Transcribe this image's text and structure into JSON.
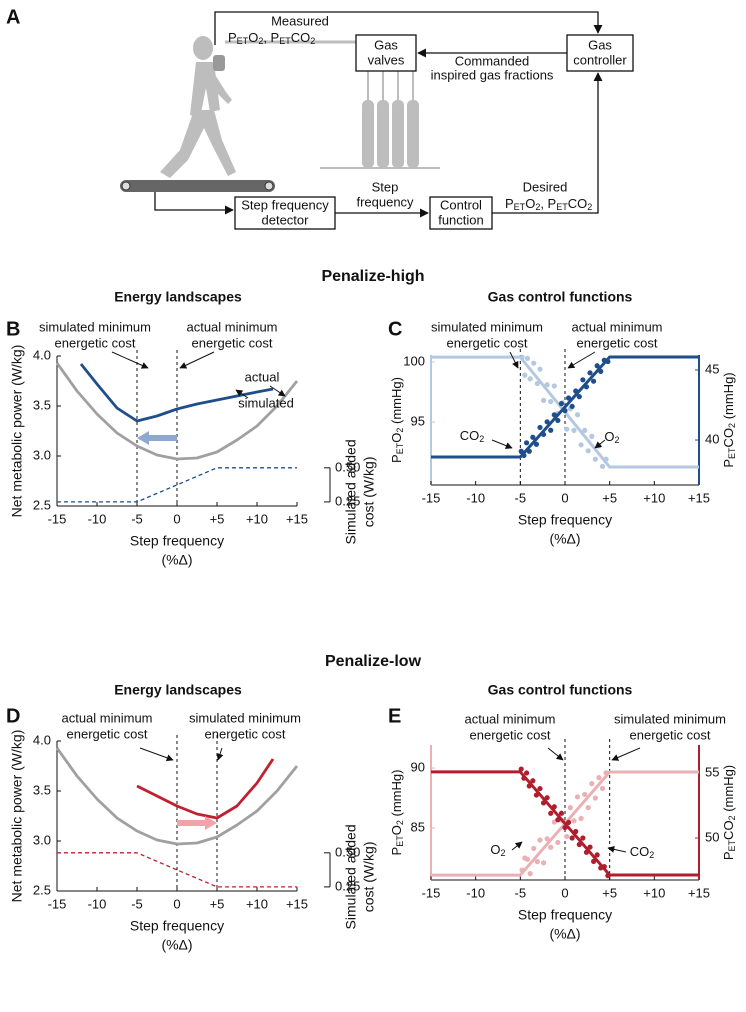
{
  "diagram": {
    "label": "A",
    "measured": "Measured",
    "measured_gases": [
      "P",
      "ET",
      "O",
      "2",
      ", P",
      "ET",
      "CO",
      "2"
    ],
    "gas_valves": [
      "Gas",
      "valves"
    ],
    "gas_controller": [
      "Gas",
      "controller"
    ],
    "commanded": [
      "Commanded",
      "inspired gas fractions"
    ],
    "step_frequency": [
      "Step",
      "frequency"
    ],
    "detector": [
      "Step frequency",
      "detector"
    ],
    "control_function": [
      "Control",
      "function"
    ],
    "desired": "Desired",
    "desired_gases": [
      "P",
      "ET",
      "O",
      "2",
      ", P",
      "ET",
      "CO",
      "2"
    ]
  },
  "section_titles": [
    "Penalize-high",
    "Penalize-low"
  ],
  "chart_data": [
    {
      "panel": "B",
      "type": "line",
      "title": "Energy landscapes",
      "xlabel": [
        "Step frequency",
        "(%Δ)"
      ],
      "ylabel": "Net metabolic power (W/kg)",
      "y2label": [
        "Simulated added",
        "cost (W/kg)"
      ],
      "xlim": [
        -15,
        15
      ],
      "xticks": [
        -15,
        -10,
        -5,
        0,
        {
          "value": 5,
          "label": "+5"
        },
        {
          "value": 10,
          "label": "+10"
        },
        {
          "value": 15,
          "label": "+15"
        }
      ],
      "ylim": [
        2.5,
        4.0
      ],
      "yticks": [
        2.5,
        {
          "value": 3,
          "label": "3.0"
        },
        3.5,
        {
          "value": 4,
          "label": "4.0"
        }
      ],
      "y2lim": [
        0.22,
        1.32
      ],
      "y2ticks": [
        0.25,
        {
          "value": 0.5,
          "label": "0.50"
        }
      ],
      "vlines": [
        -5,
        0
      ],
      "arrow": {
        "from": 0,
        "to": -5,
        "y": 3.18,
        "color": "#8fa8cf"
      },
      "annotations": [
        "simulated minimum",
        "energetic cost",
        "actual minimum",
        "energetic cost",
        "actual",
        "simulated"
      ],
      "series": [
        {
          "x": [
            -15,
            -12.5,
            -10,
            -7.5,
            -5,
            -2.5,
            0,
            2.5,
            5,
            7.5,
            10,
            12.5,
            15
          ],
          "values": [
            3.93,
            3.65,
            3.42,
            3.23,
            3.1,
            3.01,
            2.97,
            2.98,
            3.04,
            3.16,
            3.3,
            3.5,
            3.75
          ],
          "color": "#a0a0a0"
        },
        {
          "x": [
            -12,
            -10,
            -7.5,
            -5,
            -2.5,
            0,
            2.5,
            5,
            7.5,
            10,
            12
          ],
          "values": [
            3.92,
            3.72,
            3.48,
            3.35,
            3.4,
            3.47,
            3.52,
            3.56,
            3.6,
            3.64,
            3.67
          ],
          "color": "#1f4e8c"
        },
        {
          "x": [
            -15,
            -5,
            5,
            15
          ],
          "values": [
            0.25,
            0.25,
            0.5,
            0.5
          ],
          "color": "#1f4e8c",
          "axis": "y2",
          "dashed": true
        }
      ]
    },
    {
      "panel": "C",
      "type": "scatter",
      "title": "Gas control functions",
      "xlabel": [
        "Step frequency",
        "(%Δ)"
      ],
      "ylabel": [
        "P",
        "ET",
        "O",
        "2",
        " (mmHg)"
      ],
      "y2label": [
        "P",
        "ET",
        "CO",
        "2",
        " (mmHg)"
      ],
      "xlim": [
        -15,
        15
      ],
      "xticks": [
        -15,
        -10,
        -5,
        0,
        {
          "value": 5,
          "label": "+5"
        },
        {
          "value": 10,
          "label": "+10"
        },
        {
          "value": 15,
          "label": "+15"
        }
      ],
      "ylim": [
        89.75,
        100.58
      ],
      "yticks": [
        95,
        100
      ],
      "y2lim": [
        36.79,
        46.07
      ],
      "y2ticks": [
        40,
        45
      ],
      "vlines": [
        -5,
        0
      ],
      "annotations": [
        "simulated minimum",
        "energetic cost",
        "actual minimum",
        "energetic cost",
        [
          "CO",
          "2"
        ],
        [
          "O",
          "2"
        ]
      ],
      "series": [
        {
          "type": "scatter",
          "color": "#b5c8e1",
          "x": [
            -4.8,
            -4.5,
            -4.2,
            -3.9,
            -3.5,
            -3.1,
            -2.8,
            -2.4,
            -2,
            -1.6,
            -1.2,
            -0.8,
            -0.3,
            0.2,
            0.6,
            1,
            1.4,
            1.8,
            2.2,
            2.6,
            3,
            3.4,
            3.8,
            4.2,
            4.6
          ],
          "values": [
            100.4,
            98.9,
            100.3,
            98.6,
            99.9,
            98.2,
            99.4,
            96.8,
            98.1,
            96.7,
            98.0,
            95.7,
            96.6,
            94.4,
            96.1,
            94.3,
            95.6,
            93.1,
            94.3,
            92.6,
            93.8,
            91.9,
            93.0,
            91.3,
            91.9
          ]
        },
        {
          "type": "line",
          "color": "#b5c8e1",
          "x": [
            -15,
            -5,
            5,
            15
          ],
          "values": [
            100.4,
            100.4,
            91.25,
            91.25
          ]
        },
        {
          "type": "scatter",
          "color": "#1f4e8c",
          "axis": "y2",
          "x": [
            -4.9,
            -4.6,
            -4.3,
            -4,
            -3.6,
            -3.2,
            -2.8,
            -2.4,
            -2,
            -1.6,
            -1.2,
            -0.8,
            -0.4,
            0,
            0.4,
            0.8,
            1.2,
            1.6,
            2,
            2.4,
            2.8,
            3.2,
            3.6,
            4,
            4.4,
            4.8
          ],
          "values": [
            39.2,
            38.9,
            39.8,
            39.2,
            40.2,
            39.7,
            40.9,
            40.4,
            41.3,
            40.7,
            41.8,
            41.4,
            42.6,
            42.1,
            43.0,
            42.4,
            43.5,
            43.1,
            44.3,
            43.8,
            44.8,
            44.2,
            45.3,
            44.9,
            45.7,
            45.6
          ]
        },
        {
          "type": "line",
          "color": "#1f4e8c",
          "axis": "y2",
          "x": [
            -15,
            -5,
            5,
            15
          ],
          "values": [
            38.79,
            38.79,
            45.93,
            45.93
          ]
        }
      ]
    },
    {
      "panel": "D",
      "type": "line",
      "title": "Energy landscapes",
      "xlabel": [
        "Step frequency",
        "(%Δ)"
      ],
      "ylabel": "Net metabolic power (W/kg)",
      "y2label": [
        "Simulated added",
        "cost (W/kg)"
      ],
      "xlim": [
        -15,
        15
      ],
      "xticks": [
        -15,
        -10,
        -5,
        0,
        {
          "value": 5,
          "label": "+5"
        },
        {
          "value": 10,
          "label": "+10"
        },
        {
          "value": 15,
          "label": "+15"
        }
      ],
      "ylim": [
        2.5,
        4.0
      ],
      "yticks": [
        2.5,
        {
          "value": 3,
          "label": "3.0"
        },
        3.5,
        {
          "value": 4,
          "label": "4.0"
        }
      ],
      "y2lim": [
        0.22,
        1.32
      ],
      "y2ticks": [
        0.25,
        {
          "value": 0.5,
          "label": "0.50"
        }
      ],
      "vlines": [
        0,
        5
      ],
      "arrow": {
        "from": 0,
        "to": 5,
        "y": 3.18,
        "color": "#f2a3aa"
      },
      "annotations": [
        "actual minimum",
        "energetic cost",
        "simulated minimum",
        "energetic cost"
      ],
      "series": [
        {
          "x": [
            -15,
            -12.5,
            -10,
            -7.5,
            -5,
            -2.5,
            0,
            2.5,
            5,
            7.5,
            10,
            12.5,
            15
          ],
          "values": [
            3.93,
            3.65,
            3.42,
            3.23,
            3.1,
            3.01,
            2.97,
            2.98,
            3.04,
            3.16,
            3.3,
            3.5,
            3.75
          ],
          "color": "#a0a0a0"
        },
        {
          "x": [
            -5,
            -2.5,
            0,
            2.5,
            5,
            7.5,
            10,
            12
          ],
          "values": [
            3.55,
            3.45,
            3.35,
            3.27,
            3.23,
            3.35,
            3.58,
            3.82
          ],
          "color": "#c0202f"
        },
        {
          "x": [
            -15,
            -5,
            5,
            15
          ],
          "values": [
            0.5,
            0.5,
            0.25,
            0.25
          ],
          "color": "#c0202f",
          "axis": "y2",
          "dashed": true
        }
      ]
    },
    {
      "panel": "E",
      "type": "scatter",
      "title": "Gas control functions",
      "xlabel": [
        "Step frequency",
        "(%Δ)"
      ],
      "ylabel": [
        "P",
        "ET",
        "O",
        "2",
        " (mmHg)"
      ],
      "y2label": [
        "P",
        "ET",
        "CO",
        "2",
        " (mmHg)"
      ],
      "xlim": [
        -15,
        15
      ],
      "xticks": [
        -15,
        -10,
        -5,
        0,
        {
          "value": 5,
          "label": "+5"
        },
        {
          "value": 10,
          "label": "+10"
        },
        {
          "value": 15,
          "label": "+15"
        }
      ],
      "ylim": [
        80.67,
        91.92
      ],
      "yticks": [
        85,
        90
      ],
      "y2lim": [
        46.77,
        57.15
      ],
      "y2ticks": [
        50,
        55
      ],
      "vlines": [
        0,
        5
      ],
      "annotations": [
        "actual minimum",
        "energetic cost",
        "simulated minimum",
        "energetic cost",
        [
          "O",
          "2"
        ],
        [
          "CO",
          "2"
        ]
      ],
      "series": [
        {
          "type": "scatter",
          "color": "#eab0b4",
          "x": [
            -4.8,
            -4.5,
            -4.2,
            -3.9,
            -3.5,
            -3.1,
            -2.8,
            -2.4,
            -2,
            -1.6,
            -1.2,
            -0.8,
            -0.3,
            0.2,
            0.6,
            1,
            1.4,
            1.8,
            2.2,
            2.6,
            3,
            3.4,
            3.8,
            4.2,
            4.6
          ],
          "values": [
            81.5,
            82.5,
            82.4,
            81.2,
            83.3,
            82.2,
            84.0,
            82.1,
            84.1,
            83.4,
            85.5,
            83.8,
            85.6,
            84.3,
            86.7,
            85.6,
            87.6,
            85.8,
            87.8,
            86.7,
            88.7,
            87.5,
            89.2,
            88.3,
            89.6
          ]
        },
        {
          "type": "line",
          "color": "#eab0b4",
          "x": [
            -15,
            -5,
            5,
            15
          ],
          "values": [
            81.08,
            81.08,
            89.67,
            89.67
          ]
        },
        {
          "type": "scatter",
          "color": "#b01e2e",
          "axis": "y2",
          "x": [
            -4.9,
            -4.6,
            -4.3,
            -4,
            -3.6,
            -3.2,
            -2.8,
            -2.4,
            -2,
            -1.6,
            -1.2,
            -0.8,
            -0.4,
            0,
            0.4,
            0.8,
            1.2,
            1.6,
            2,
            2.4,
            2.8,
            3.2,
            3.6,
            4,
            4.4,
            4.8
          ],
          "values": [
            55.3,
            54.6,
            55.0,
            54.0,
            54.4,
            53.3,
            53.8,
            52.7,
            53.1,
            51.9,
            52.4,
            51.4,
            51.9,
            50.8,
            51.2,
            50.0,
            50.5,
            49.5,
            50.0,
            48.9,
            49.3,
            48.2,
            48.7,
            47.7,
            47.8,
            47.1
          ]
        },
        {
          "type": "line",
          "color": "#b01e2e",
          "axis": "y2",
          "x": [
            -15,
            -5,
            5,
            15
          ],
          "values": [
            55.08,
            55.08,
            47.15,
            47.15
          ]
        }
      ]
    }
  ]
}
